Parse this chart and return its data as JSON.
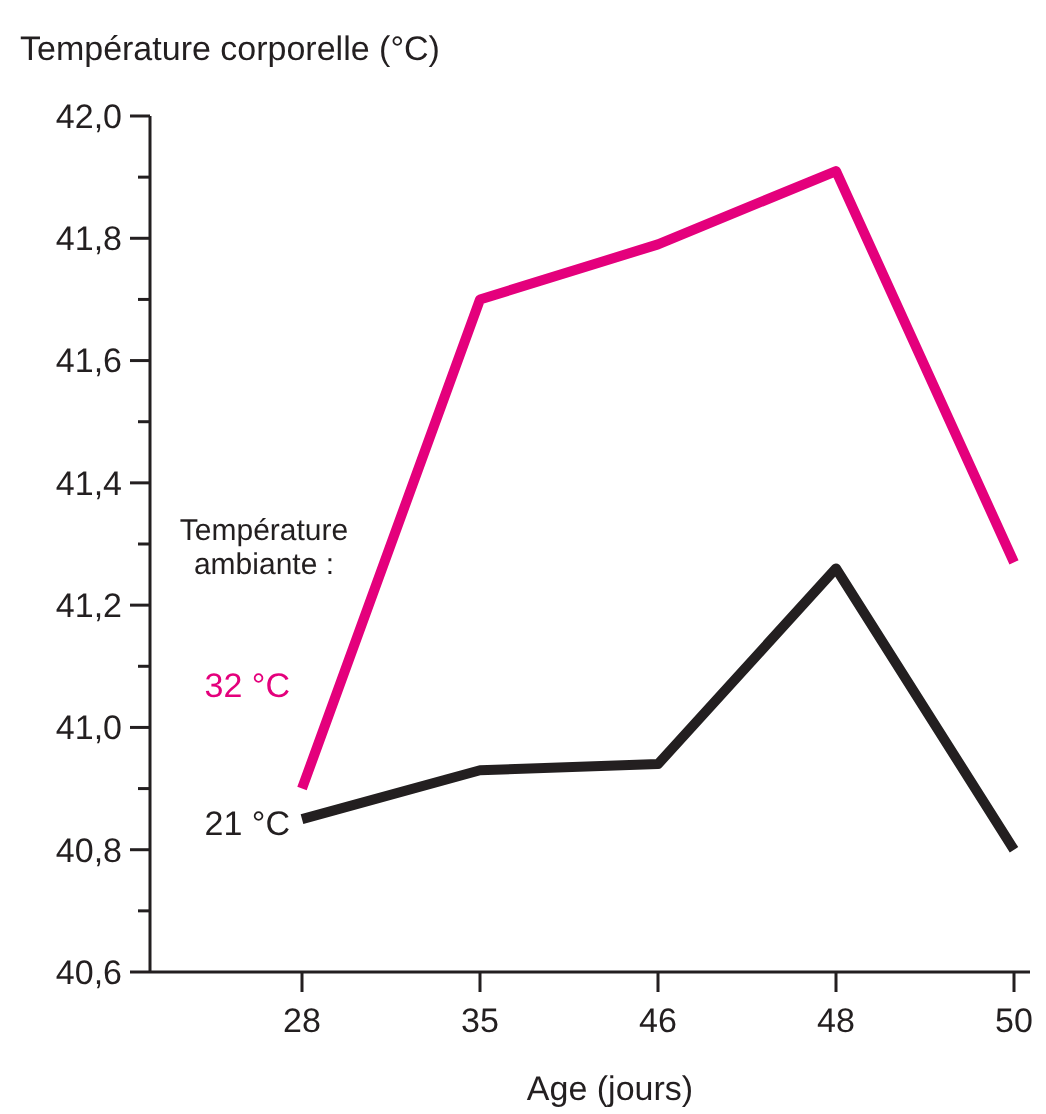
{
  "chart_data": {
    "type": "line",
    "ylabel": "Température corporelle (°C)",
    "xlabel": "Age (jours)",
    "categories": [
      "28",
      "35",
      "46",
      "48",
      "50"
    ],
    "series": [
      {
        "name": "32 °C",
        "color": "#e4007c",
        "values": [
          40.9,
          41.7,
          41.79,
          41.91,
          41.27
        ]
      },
      {
        "name": "21 °C",
        "color": "#231f20",
        "values": [
          40.85,
          40.93,
          40.94,
          41.26,
          40.8
        ]
      }
    ],
    "ylim": [
      40.6,
      42.0
    ],
    "yticks": [
      {
        "value": 40.6,
        "label": "40,6"
      },
      {
        "value": 40.7,
        "label": null
      },
      {
        "value": 40.8,
        "label": "40,8"
      },
      {
        "value": 40.9,
        "label": null
      },
      {
        "value": 41.0,
        "label": "41,0"
      },
      {
        "value": 41.1,
        "label": null
      },
      {
        "value": 41.2,
        "label": "41,2"
      },
      {
        "value": 41.3,
        "label": null
      },
      {
        "value": 41.4,
        "label": "41,4"
      },
      {
        "value": 41.5,
        "label": null
      },
      {
        "value": 41.6,
        "label": "41,6"
      },
      {
        "value": 41.7,
        "label": null
      },
      {
        "value": 41.8,
        "label": "41,8"
      },
      {
        "value": 41.9,
        "label": null
      },
      {
        "value": 42.0,
        "label": "42,0"
      }
    ],
    "annotations": [
      "Température\nambiante :"
    ],
    "grid": false,
    "marker": "none",
    "line_style": "solid"
  }
}
